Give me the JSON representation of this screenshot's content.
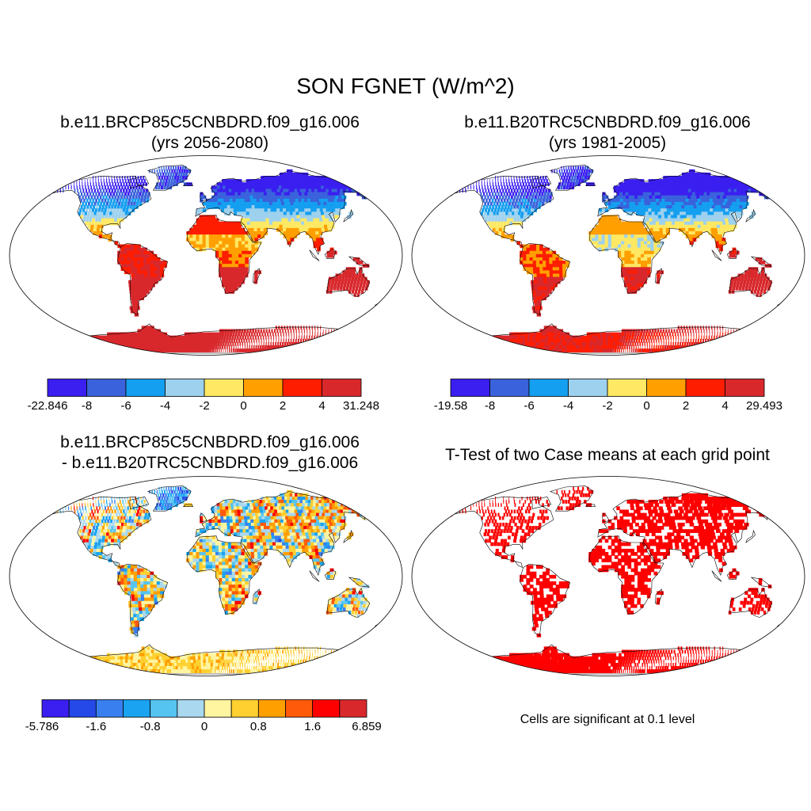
{
  "main_title": "SON FGNET (W/m^2)",
  "panels": [
    {
      "id": "case1",
      "title_line1": "b.e11.BRCP85C5CNBDRD.f09_g16.006",
      "title_line2": "(yrs 2056-2080)",
      "field": "abs",
      "land_offset": 0.12
    },
    {
      "id": "case2",
      "title_line1": "b.e11.B20TRC5CNBDRD.f09_g16.006",
      "title_line2": "(yrs 1981-2005)",
      "field": "abs",
      "land_offset": 0.0
    },
    {
      "id": "diff",
      "title_line1": "b.e11.BRCP85C5CNBDRD.f09_g16.006",
      "title_line2": "- b.e11.B20TRC5CNBDRD.f09_g16.006",
      "field": "diff"
    },
    {
      "id": "ttest",
      "title_line1": "T-Test of two Case means at each grid point",
      "title_line2": "",
      "field": "sig"
    }
  ],
  "colorbars": [
    {
      "id": "cb1",
      "colors": [
        "#3a1ff0",
        "#3a62dc",
        "#159ff0",
        "#9dd1ee",
        "#ffe863",
        "#ff9f00",
        "#ff1d00",
        "#d8282c"
      ],
      "labels": [
        "-22.846",
        "-8",
        "-6",
        "-4",
        "-2",
        "0",
        "2",
        "4",
        "31.248"
      ]
    },
    {
      "id": "cb2",
      "colors": [
        "#3a1ff0",
        "#3a62dc",
        "#159ff0",
        "#9dd1ee",
        "#ffe863",
        "#ff9f00",
        "#ff1d00",
        "#d8282c"
      ],
      "labels": [
        "-19.58",
        "-8",
        "-6",
        "-4",
        "-2",
        "0",
        "2",
        "4",
        "29.493"
      ]
    },
    {
      "id": "cb3",
      "colors": [
        "#3a1ff0",
        "#2548e8",
        "#3a7ff0",
        "#1aa3f0",
        "#56c4f0",
        "#a9d8ef",
        "#fff4a0",
        "#ffd030",
        "#ff9f00",
        "#ff5a0a",
        "#ff0000",
        "#d8282c"
      ],
      "labels": [
        "-5.786",
        "",
        "-1.6",
        "",
        "-0.8",
        "",
        "0",
        "",
        "0.8",
        "",
        "1.6",
        "",
        "6.859"
      ]
    }
  ],
  "significance_note": "Cells are significant at 0.1 level",
  "significance_color": "#ff0000"
}
